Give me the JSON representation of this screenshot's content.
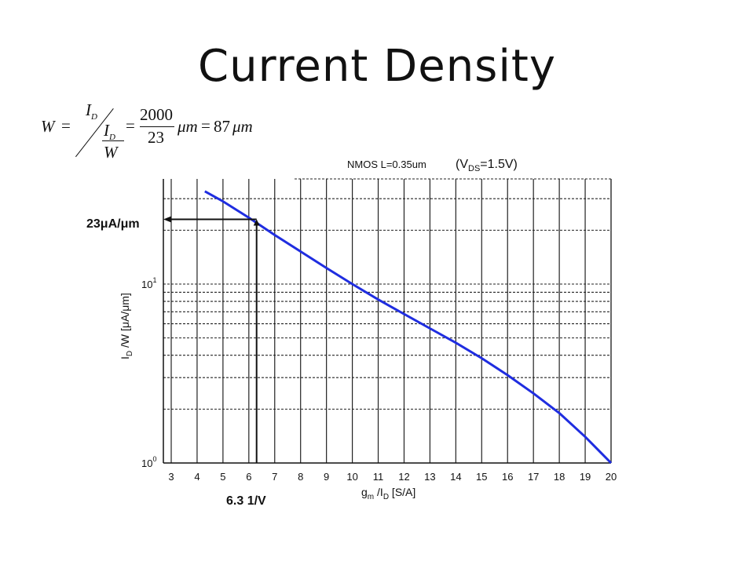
{
  "slide": {
    "title": "Current Density"
  },
  "formula": {
    "lhs": "W",
    "eq1": "=",
    "num_var": "I",
    "num_sub": "D",
    "den_var": "I",
    "den_sub": "D",
    "den_w": "W",
    "eq2": "=",
    "frac_num": "2000",
    "frac_den": "23",
    "unit1": "μm",
    "eq3": "=",
    "result": "87",
    "unit2": "μm"
  },
  "chart_data": {
    "type": "line",
    "title": "NMOS L=0.35um",
    "condition": "(V",
    "condition_sub": "DS",
    "condition_tail": "=1.5V)",
    "x_label": {
      "base": "g",
      "sub1": "m",
      "mid": " /I",
      "sub2": "D",
      "unit": "  [S/A]"
    },
    "y_label": {
      "base": "I",
      "sub": "D",
      "rest": " /W [μA/μm]"
    },
    "x_ticks": [
      3,
      4,
      5,
      6,
      7,
      8,
      9,
      10,
      11,
      12,
      13,
      14,
      15,
      16,
      17,
      18,
      19,
      20
    ],
    "y_tick_labels": [
      {
        "value": 1,
        "base": "10",
        "exp": "0"
      },
      {
        "value": 10,
        "base": "10",
        "exp": "1"
      }
    ],
    "xlim": [
      3,
      20
    ],
    "ylim": [
      1,
      33
    ],
    "y_scale": "log",
    "grid": true,
    "series": [
      {
        "color": "#1f2de0",
        "x": [
          4.3,
          5.0,
          6.0,
          7.0,
          8.0,
          9.0,
          10.0,
          11.0,
          12.0,
          13.0,
          14.0,
          15.0,
          16.0,
          17.0,
          18.0,
          19.0,
          20.0
        ],
        "y": [
          33,
          29,
          23.5,
          18.8,
          15.2,
          12.3,
          10.0,
          8.2,
          6.8,
          5.65,
          4.7,
          3.85,
          3.1,
          2.45,
          1.9,
          1.4,
          1.0
        ]
      }
    ],
    "annotations": {
      "y_marker": {
        "value": 23,
        "label": "23μA/μm"
      },
      "x_marker": {
        "value": 6.3,
        "label": "6.3 1/V"
      }
    }
  }
}
